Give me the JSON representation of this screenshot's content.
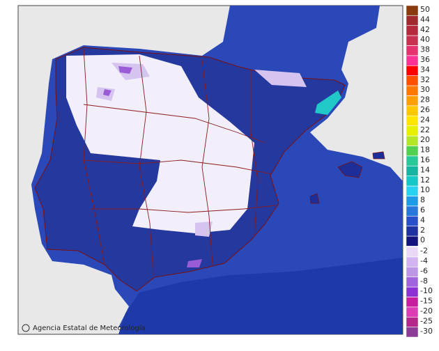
{
  "legend": {
    "entries": [
      {
        "value": 50,
        "color": "#8b3a0f"
      },
      {
        "value": 44,
        "color": "#a02a2d"
      },
      {
        "value": 42,
        "color": "#b42a3c"
      },
      {
        "value": 40,
        "color": "#c83250"
      },
      {
        "value": 38,
        "color": "#e6326e"
      },
      {
        "value": 36,
        "color": "#ff3296"
      },
      {
        "value": 34,
        "color": "#ff0000"
      },
      {
        "value": 32,
        "color": "#ff5000"
      },
      {
        "value": 30,
        "color": "#ff7800"
      },
      {
        "value": 28,
        "color": "#ffa000"
      },
      {
        "value": 26,
        "color": "#ffc800"
      },
      {
        "value": 24,
        "color": "#ffe600"
      },
      {
        "value": 22,
        "color": "#e6f000"
      },
      {
        "value": 20,
        "color": "#b4e628"
      },
      {
        "value": 18,
        "color": "#50d250"
      },
      {
        "value": 16,
        "color": "#28c89b"
      },
      {
        "value": 14,
        "color": "#14b4a0"
      },
      {
        "value": 12,
        "color": "#14c8c8"
      },
      {
        "value": 10,
        "color": "#28d2f0"
      },
      {
        "value": 8,
        "color": "#1e9be6"
      },
      {
        "value": 6,
        "color": "#2878dc"
      },
      {
        "value": 4,
        "color": "#2850c8"
      },
      {
        "value": 2,
        "color": "#1e32a0"
      },
      {
        "value": 0,
        "color": "#14147d"
      },
      {
        "value": -2,
        "color": "#ead8f7"
      },
      {
        "value": -4,
        "color": "#d2b4f0"
      },
      {
        "value": -6,
        "color": "#be96e6"
      },
      {
        "value": -8,
        "color": "#a064dc"
      },
      {
        "value": -10,
        "color": "#8c32d2"
      },
      {
        "value": -15,
        "color": "#c81ea0"
      },
      {
        "value": -20,
        "color": "#dc3cb4"
      },
      {
        "value": -25,
        "color": "#b4288c"
      },
      {
        "value": -30,
        "color": "#8c3c96"
      }
    ]
  },
  "credit": "Agencia Estatal de Meteorología"
}
